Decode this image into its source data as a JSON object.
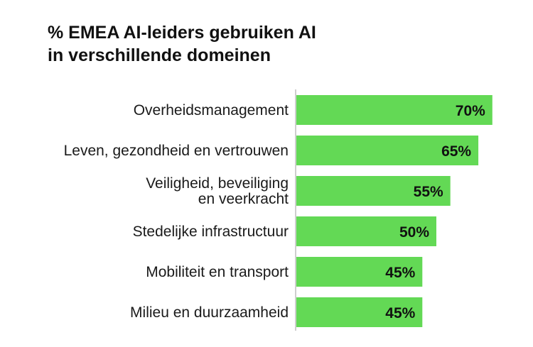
{
  "title": {
    "line1": "% EMEA AI-leiders gebruiken AI",
    "line2": "in verschillende domeinen"
  },
  "colors": {
    "bar": "#63d955",
    "axis": "#bdbdbd",
    "text": "#111111"
  },
  "chart_data": {
    "type": "bar",
    "orientation": "horizontal",
    "title": "% EMEA AI-leiders gebruiken AI in verschillende domeinen",
    "categories": [
      [
        "Overheidsmanagement"
      ],
      [
        "Leven, gezondheid en vertrouwen"
      ],
      [
        "Veiligheid, beveiliging",
        "en veerkracht"
      ],
      [
        "Stedelijke infrastructuur"
      ],
      [
        "Mobiliteit en transport"
      ],
      [
        "Milieu en duurzaamheid"
      ]
    ],
    "values": [
      70,
      65,
      55,
      50,
      45,
      45
    ],
    "value_labels": [
      "70%",
      "65%",
      "55%",
      "50%",
      "45%",
      "45%"
    ],
    "xlim": [
      0,
      100
    ],
    "xlabel": "",
    "ylabel": "",
    "grid": false,
    "legend": "none"
  }
}
